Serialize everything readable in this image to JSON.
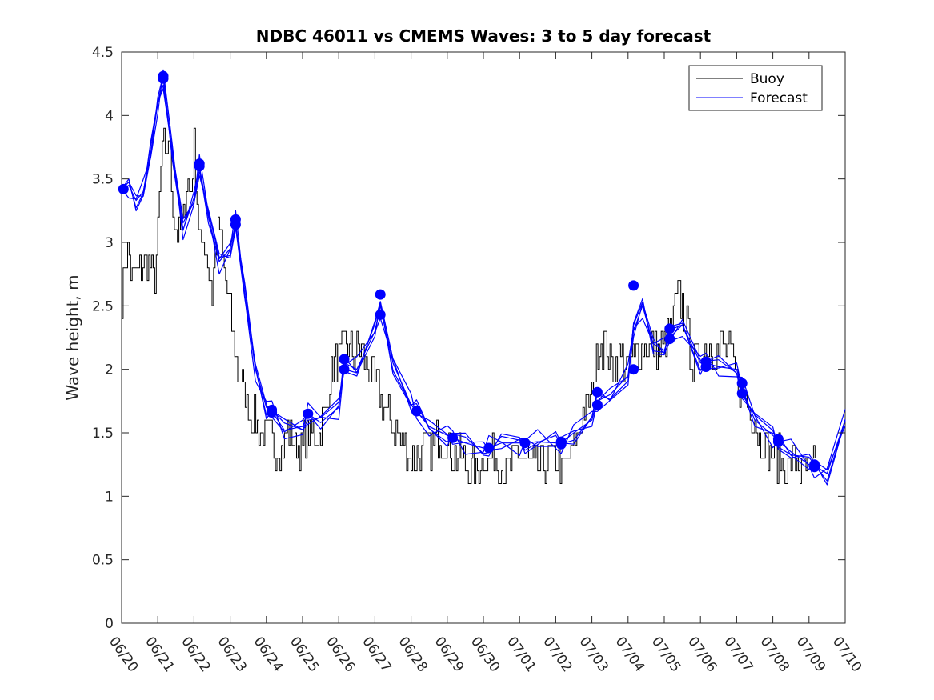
{
  "chart_data": {
    "type": "line",
    "title": "NDBC 46011 vs CMEMS Waves: 3 to 5 day forecast",
    "xlabel": "",
    "ylabel": "Wave height, m",
    "x_tick_labels": [
      "06/20",
      "06/21",
      "06/22",
      "06/23",
      "06/24",
      "06/25",
      "06/26",
      "06/27",
      "06/28",
      "06/29",
      "06/30",
      "07/01",
      "07/02",
      "07/03",
      "07/04",
      "07/05",
      "07/06",
      "07/07",
      "07/08",
      "07/09",
      "07/10"
    ],
    "x_range_days": [
      0,
      20
    ],
    "y_ticks": [
      "0",
      "0.5",
      "1",
      "1.5",
      "2",
      "2.5",
      "3",
      "3.5",
      "4",
      "4.5"
    ],
    "ylim": [
      0,
      4.5
    ],
    "grid": false,
    "legend": {
      "placement": "top-right",
      "entries": [
        "Buoy",
        "Forecast"
      ]
    },
    "colors": {
      "buoy": "#000000",
      "forecast": "#0000ff",
      "marker": "#0000ff"
    },
    "series": [
      {
        "name": "Buoy",
        "x": [
          0,
          0.15,
          0.3,
          0.5,
          0.7,
          0.9,
          1.0,
          1.1,
          1.15,
          1.2,
          1.3,
          1.4,
          1.5,
          1.6,
          1.7,
          1.8,
          1.9,
          2.0,
          2.1,
          2.2,
          2.3,
          2.4,
          2.5,
          2.6,
          2.7,
          2.8,
          2.9,
          3.0,
          3.1,
          3.2,
          3.3,
          3.4,
          3.5,
          3.6,
          3.7,
          3.8,
          4.0,
          4.2,
          4.4,
          4.6,
          4.8,
          5.0,
          5.2,
          5.4,
          5.6,
          5.8,
          6.0,
          6.2,
          6.4,
          6.6,
          6.8,
          7.0,
          7.1,
          7.2,
          7.4,
          7.6,
          7.8,
          8.0,
          8.2,
          8.4,
          8.6,
          8.8,
          9.0,
          9.2,
          9.4,
          9.6,
          9.8,
          10.0,
          10.3,
          10.6,
          10.9,
          11.2,
          11.5,
          11.8,
          12.0,
          12.2,
          12.4,
          12.6,
          12.8,
          13.0,
          13.1,
          13.2,
          13.4,
          13.6,
          13.8,
          14.0,
          14.2,
          14.4,
          14.6,
          14.8,
          15.0,
          15.2,
          15.3,
          15.4,
          15.6,
          15.8,
          16.0,
          16.2,
          16.4,
          16.6,
          16.8,
          17.0,
          17.2,
          17.4,
          17.6,
          17.8,
          18.0,
          18.2,
          18.4,
          18.6,
          18.8,
          19.0,
          19.2
        ],
        "values": [
          2.6,
          3.0,
          2.7,
          2.8,
          2.9,
          2.7,
          3.1,
          3.6,
          3.9,
          3.5,
          3.9,
          3.3,
          3.1,
          3.0,
          3.2,
          3.5,
          3.4,
          3.8,
          3.2,
          2.9,
          3.0,
          2.8,
          2.6,
          3.0,
          3.1,
          2.8,
          2.6,
          2.5,
          2.2,
          2.0,
          1.9,
          1.8,
          1.7,
          1.6,
          1.6,
          1.5,
          1.5,
          1.4,
          1.4,
          1.5,
          1.4,
          1.4,
          1.5,
          1.5,
          1.6,
          2.0,
          2.1,
          2.2,
          2.1,
          2.2,
          2.0,
          1.9,
          1.8,
          1.7,
          1.6,
          1.5,
          1.4,
          1.3,
          1.3,
          1.4,
          1.4,
          1.5,
          1.4,
          1.3,
          1.3,
          1.2,
          1.2,
          1.3,
          1.3,
          1.2,
          1.3,
          1.3,
          1.2,
          1.3,
          1.3,
          1.2,
          1.3,
          1.5,
          1.7,
          1.8,
          2.0,
          2.2,
          2.2,
          2.0,
          2.1,
          2.0,
          2.1,
          2.2,
          2.2,
          2.1,
          2.2,
          2.3,
          2.5,
          2.6,
          2.4,
          2.0,
          2.1,
          2.2,
          2.1,
          2.2,
          2.1,
          1.9,
          1.8,
          1.7,
          1.5,
          1.4,
          1.3,
          1.3,
          1.2,
          1.3,
          1.2,
          1.2,
          1.3
        ]
      },
      {
        "name": "Forecast",
        "x": [
          0,
          0.2,
          0.4,
          0.6,
          0.8,
          1.0,
          1.15,
          1.4,
          1.7,
          2.0,
          2.15,
          2.4,
          2.7,
          3.0,
          3.15,
          3.4,
          3.7,
          4.0,
          4.15,
          4.5,
          5.0,
          5.15,
          5.5,
          6.0,
          6.15,
          6.5,
          7.0,
          7.15,
          7.5,
          8.0,
          8.15,
          8.5,
          9.0,
          9.15,
          9.5,
          10.0,
          10.15,
          10.5,
          11.0,
          11.15,
          11.5,
          12.0,
          12.15,
          12.5,
          13.0,
          13.15,
          13.5,
          14.0,
          14.15,
          14.4,
          14.7,
          15.0,
          15.15,
          15.5,
          16.0,
          16.15,
          16.5,
          17.0,
          17.15,
          17.5,
          18.0,
          18.15,
          18.5,
          19.0,
          19.15,
          19.5,
          20.0
        ],
        "values": [
          3.42,
          3.45,
          3.33,
          3.4,
          3.7,
          4.1,
          4.3,
          3.7,
          3.1,
          3.35,
          3.6,
          3.2,
          2.85,
          2.95,
          3.15,
          2.6,
          2.0,
          1.7,
          1.67,
          1.52,
          1.55,
          1.65,
          1.58,
          1.7,
          2.05,
          2.0,
          2.3,
          2.5,
          2.05,
          1.72,
          1.67,
          1.55,
          1.48,
          1.46,
          1.42,
          1.38,
          1.38,
          1.42,
          1.42,
          1.42,
          1.43,
          1.42,
          1.42,
          1.5,
          1.6,
          1.75,
          1.8,
          1.95,
          2.3,
          2.5,
          2.2,
          2.15,
          2.25,
          2.35,
          2.05,
          2.05,
          2.02,
          2.0,
          1.85,
          1.6,
          1.48,
          1.44,
          1.35,
          1.25,
          1.24,
          1.18,
          1.6
        ]
      }
    ],
    "markers": {
      "name": "Forecast start points",
      "x": [
        0.05,
        1.15,
        1.15,
        2.15,
        2.15,
        3.15,
        3.15,
        4.15,
        4.15,
        5.15,
        6.15,
        6.15,
        7.15,
        7.15,
        8.15,
        9.15,
        10.15,
        11.15,
        12.15,
        12.15,
        13.15,
        13.15,
        14.15,
        14.15,
        15.15,
        15.15,
        16.15,
        16.15,
        17.15,
        17.15,
        18.15,
        18.15,
        19.15,
        19.15
      ],
      "values": [
        3.42,
        4.31,
        4.29,
        3.62,
        3.6,
        3.18,
        3.14,
        1.68,
        1.66,
        1.65,
        2.08,
        2.0,
        2.59,
        2.43,
        1.67,
        1.46,
        1.38,
        1.42,
        1.43,
        1.41,
        1.82,
        1.72,
        2.66,
        2.0,
        2.32,
        2.24,
        2.06,
        2.02,
        1.89,
        1.81,
        1.45,
        1.43,
        1.25,
        1.23
      ]
    }
  }
}
